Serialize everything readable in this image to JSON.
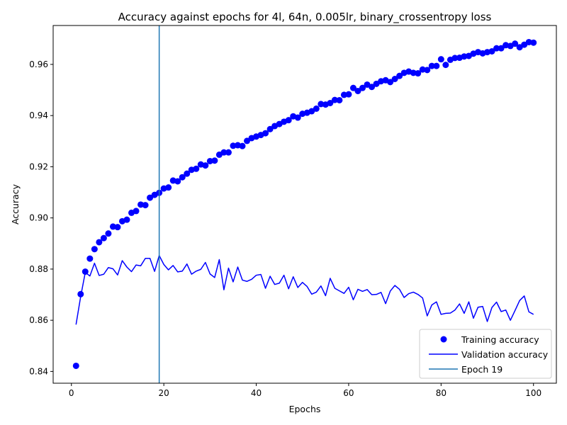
{
  "chart_data": {
    "type": "line",
    "title": "Accuracy against epochs for 4l, 64n, 0.005lr, binary_crossentropy loss",
    "xlabel": "Epochs",
    "ylabel": "Accuracy",
    "xlim": [
      -3.95,
      104.95
    ],
    "ylim": [
      0.8354,
      0.9752
    ],
    "x_ticks": [
      0,
      20,
      40,
      60,
      80,
      100
    ],
    "y_ticks": [
      0.84,
      0.86,
      0.88,
      0.9,
      0.92,
      0.94,
      0.96
    ],
    "x_tick_labels": [
      "0",
      "20",
      "40",
      "60",
      "80",
      "100"
    ],
    "y_tick_labels": [
      "0.84",
      "0.86",
      "0.88",
      "0.90",
      "0.92",
      "0.94",
      "0.96"
    ],
    "grid": false,
    "legend_position": "lower right",
    "x": [
      1,
      2,
      3,
      4,
      5,
      6,
      7,
      8,
      9,
      10,
      11,
      12,
      13,
      14,
      15,
      16,
      17,
      18,
      19,
      20,
      21,
      22,
      23,
      24,
      25,
      26,
      27,
      28,
      29,
      30,
      31,
      32,
      33,
      34,
      35,
      36,
      37,
      38,
      39,
      40,
      41,
      42,
      43,
      44,
      45,
      46,
      47,
      48,
      49,
      50,
      51,
      52,
      53,
      54,
      55,
      56,
      57,
      58,
      59,
      60,
      61,
      62,
      63,
      64,
      65,
      66,
      67,
      68,
      69,
      70,
      71,
      72,
      73,
      74,
      75,
      76,
      77,
      78,
      79,
      80,
      81,
      82,
      83,
      84,
      85,
      86,
      87,
      88,
      89,
      90,
      91,
      92,
      93,
      94,
      95,
      96,
      97,
      98,
      99,
      100
    ],
    "series": [
      {
        "name": "Training accuracy",
        "style": "markers",
        "color": "#0000ff",
        "values": [
          0.8422,
          0.8702,
          0.879,
          0.8841,
          0.8878,
          0.8905,
          0.8921,
          0.8939,
          0.8966,
          0.8964,
          0.8987,
          0.8993,
          0.902,
          0.9027,
          0.9052,
          0.905,
          0.9079,
          0.909,
          0.9098,
          0.9115,
          0.9119,
          0.9146,
          0.9143,
          0.9159,
          0.9173,
          0.9188,
          0.9192,
          0.9209,
          0.9205,
          0.9222,
          0.9224,
          0.9247,
          0.9256,
          0.9256,
          0.9282,
          0.9284,
          0.9281,
          0.9301,
          0.9312,
          0.9318,
          0.9324,
          0.9331,
          0.9347,
          0.9359,
          0.9367,
          0.9376,
          0.9382,
          0.9397,
          0.9392,
          0.9407,
          0.9411,
          0.9417,
          0.9427,
          0.9445,
          0.9443,
          0.9449,
          0.9461,
          0.946,
          0.9481,
          0.9483,
          0.9508,
          0.9496,
          0.9508,
          0.9521,
          0.9512,
          0.9524,
          0.9534,
          0.9538,
          0.9531,
          0.9543,
          0.9555,
          0.9567,
          0.9572,
          0.9567,
          0.9565,
          0.958,
          0.9578,
          0.9594,
          0.9594,
          0.962,
          0.9598,
          0.9618,
          0.9625,
          0.9626,
          0.9631,
          0.9633,
          0.9642,
          0.9648,
          0.9643,
          0.9648,
          0.9651,
          0.9663,
          0.9663,
          0.9675,
          0.9672,
          0.9681,
          0.9667,
          0.9677,
          0.9687,
          0.9685
        ]
      },
      {
        "name": "Validation accuracy",
        "style": "line",
        "color": "#0000ff",
        "values": [
          0.8583,
          0.8692,
          0.8787,
          0.8773,
          0.8823,
          0.8775,
          0.878,
          0.8806,
          0.8801,
          0.8777,
          0.8833,
          0.8808,
          0.879,
          0.8816,
          0.8813,
          0.8842,
          0.8842,
          0.8791,
          0.8853,
          0.8818,
          0.8797,
          0.8814,
          0.8789,
          0.8792,
          0.882,
          0.878,
          0.8792,
          0.8799,
          0.8826,
          0.8781,
          0.8767,
          0.8837,
          0.8719,
          0.8804,
          0.875,
          0.8808,
          0.8757,
          0.8752,
          0.876,
          0.8776,
          0.8779,
          0.8725,
          0.8772,
          0.874,
          0.8745,
          0.8776,
          0.8723,
          0.877,
          0.8728,
          0.8748,
          0.8732,
          0.8702,
          0.871,
          0.8734,
          0.8696,
          0.8764,
          0.8725,
          0.8715,
          0.8705,
          0.8729,
          0.868,
          0.8721,
          0.8713,
          0.872,
          0.87,
          0.8701,
          0.8709,
          0.8665,
          0.8714,
          0.8736,
          0.8721,
          0.8689,
          0.8704,
          0.871,
          0.8701,
          0.8687,
          0.8617,
          0.866,
          0.8672,
          0.8623,
          0.8627,
          0.8628,
          0.864,
          0.8664,
          0.8627,
          0.8672,
          0.8608,
          0.8651,
          0.8654,
          0.8595,
          0.865,
          0.8671,
          0.8634,
          0.864,
          0.86,
          0.8638,
          0.8677,
          0.8695,
          0.8633,
          0.8623
        ]
      }
    ],
    "vlines": [
      {
        "name": "Epoch 19",
        "x": 19,
        "color": "#1f77b4"
      }
    ]
  }
}
